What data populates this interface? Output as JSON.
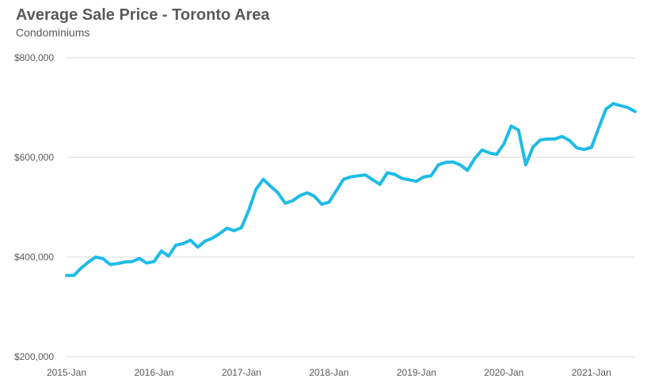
{
  "chart_data": {
    "type": "line",
    "title": "Average Sale Price - Toronto Area",
    "subtitle": "Condominiums",
    "xlabel": "",
    "ylabel": "",
    "ylim": [
      200000,
      800000
    ],
    "y_ticks": [
      200000,
      400000,
      600000,
      800000
    ],
    "y_tick_labels": [
      "$200,000",
      "$400,000",
      "$600,000",
      "$800,000"
    ],
    "x_tick_labels": [
      "2015-Jan",
      "2016-Jan",
      "2017-Jan",
      "2018-Jan",
      "2019-Jan",
      "2020-Jan",
      "2021-Jan"
    ],
    "x_tick_indices": [
      0,
      12,
      24,
      36,
      48,
      60,
      72
    ],
    "grid": true,
    "legend": "none",
    "colors": {
      "line": "#1ebbe6",
      "grid": "#d9d9d9",
      "text": "#595959"
    },
    "series": [
      {
        "values": [
          363000,
          363000,
          378000,
          390000,
          400000,
          397000,
          385000,
          387000,
          390000,
          391000,
          397000,
          388000,
          391000,
          412000,
          402000,
          424000,
          427000,
          434000,
          420000,
          432000,
          438000,
          447000,
          458000,
          453000,
          459000,
          494000,
          536000,
          556000,
          542000,
          529000,
          508000,
          513000,
          523000,
          529000,
          522000,
          506000,
          510000,
          533000,
          556000,
          561000,
          563000,
          565000,
          555000,
          546000,
          569000,
          566000,
          558000,
          555000,
          552000,
          561000,
          563000,
          585000,
          590000,
          591000,
          585000,
          574000,
          598000,
          615000,
          609000,
          606000,
          627000,
          663000,
          655000,
          585000,
          621000,
          635000,
          637000,
          637000,
          642000,
          634000,
          619000,
          616000,
          620000,
          659000,
          697000,
          708000,
          704000,
          700000,
          692000
        ]
      }
    ]
  }
}
